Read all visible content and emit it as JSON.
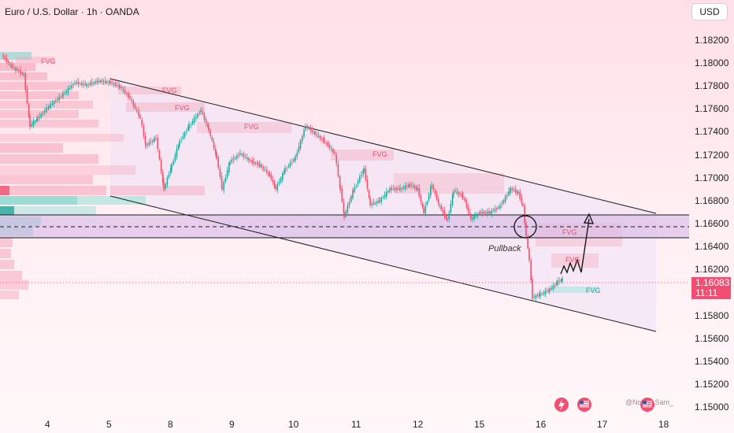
{
  "header": {
    "title": "Euro / U.S. Dollar · 1h · OANDA",
    "currency_button": "USD"
  },
  "price_axis": {
    "ticks": [
      "1.18200",
      "1.18000",
      "1.17800",
      "1.17600",
      "1.17400",
      "1.17200",
      "1.17000",
      "1.16800",
      "1.16600",
      "1.16400",
      "1.16200",
      "1.15800",
      "1.15600",
      "1.15400",
      "1.15200",
      "1.15000"
    ],
    "last_price": "1.16083",
    "countdown": "11:11",
    "last_price_color": "#f44d72"
  },
  "time_axis": {
    "ticks": [
      "4",
      "5",
      "8",
      "9",
      "10",
      "11",
      "12",
      "15",
      "16",
      "17",
      "18"
    ]
  },
  "annotations": {
    "fvg_label": "FVG",
    "pullback_label": "Pullback",
    "watermark": "@No...y_Sam_"
  },
  "colors": {
    "bull": "#26a69a",
    "bear": "#ef5370",
    "fvg_zone": "#f3a5b7",
    "support_zone": "#d7b7e6"
  },
  "icons": {
    "flash": "flash-icon",
    "flag": "us-flag-icon"
  }
}
